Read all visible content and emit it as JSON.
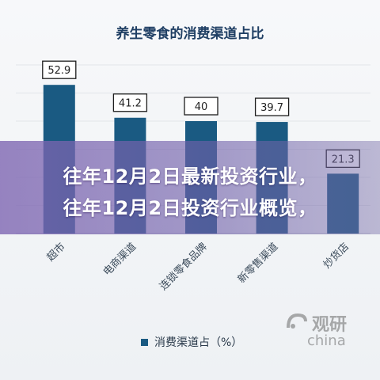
{
  "chart_data": {
    "type": "bar",
    "title": "养生零食的消费渠道占比",
    "categories": [
      "超市",
      "电商渠道",
      "连锁零食品牌",
      "新零售渠道",
      "炒货店"
    ],
    "series": [
      {
        "name": "消费渠道占（%）",
        "values": [
          52.9,
          41.2,
          40,
          39.7,
          21.3
        ]
      }
    ],
    "data_labels": [
      "52.9",
      "41.2",
      "40",
      "39.7",
      "21.3"
    ],
    "ylim": [
      0,
      60
    ],
    "grid": true,
    "legend_position": "bottom",
    "colors": {
      "bar": "#1a5a82",
      "label_border": "#1c1c1c",
      "title": "#1f3f64"
    }
  },
  "overlay": {
    "line1": "往年12月2日最新投资行业，",
    "line2": "往年12月2日投资行业概览，"
  },
  "watermark": {
    "text_cn": "观研",
    "text_en": "china"
  }
}
